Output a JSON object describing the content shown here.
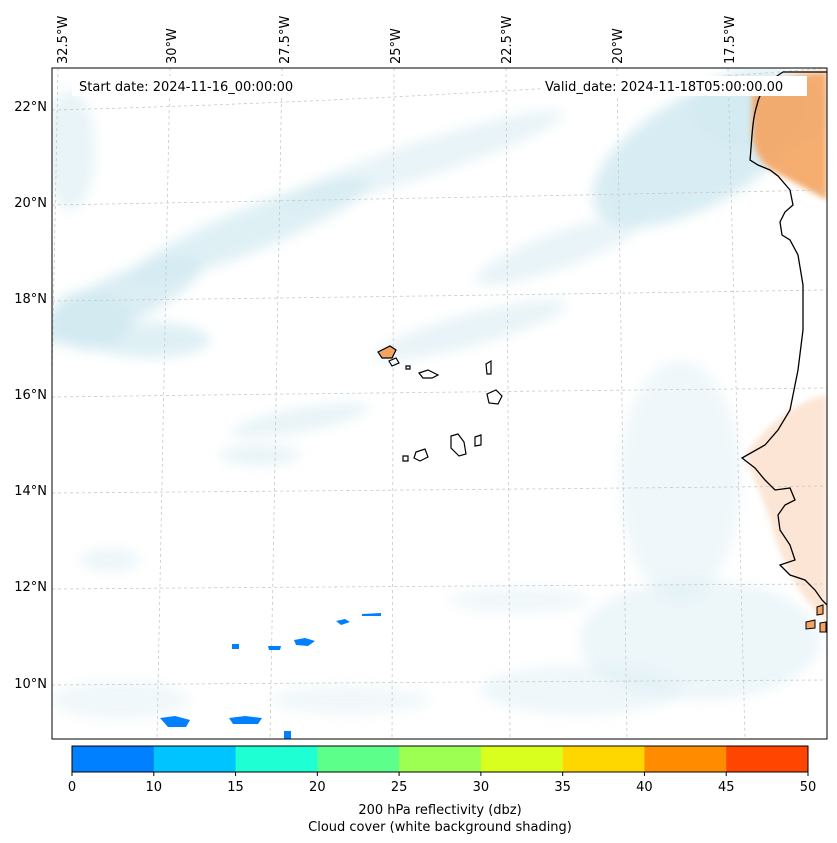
{
  "map": {
    "start_date": "Start date: 2024-11-16_00:00:00",
    "valid_date": "Valid_date: 2024-11-18T05:00:00.00",
    "lon_labels": [
      "32.5°W",
      "30°W",
      "27.5°W",
      "25°W",
      "22.5°W",
      "20°W",
      "17.5°W"
    ],
    "lat_labels": [
      "22°N",
      "20°N",
      "18°N",
      "16°N",
      "14°N",
      "12°N",
      "10°N"
    ]
  },
  "colorbar": {
    "ticks": [
      "0",
      "10",
      "15",
      "20",
      "25",
      "30",
      "35",
      "40",
      "45",
      "50"
    ],
    "colors": [
      "#0080ff",
      "#00c4ff",
      "#1effd4",
      "#5cff8a",
      "#9cff52",
      "#d8ff1e",
      "#ffd700",
      "#ff8c00",
      "#ff4500"
    ],
    "label_line1": "200 hPa reflectivity (dbz)",
    "label_line2": "Cloud cover (white background shading)"
  },
  "style": {
    "land_fill": "#ffffff",
    "coast_color": "#000000",
    "cloud_color": "#add8e6",
    "echo_color": "#0080ff",
    "warm_color": "#f4a460"
  }
}
